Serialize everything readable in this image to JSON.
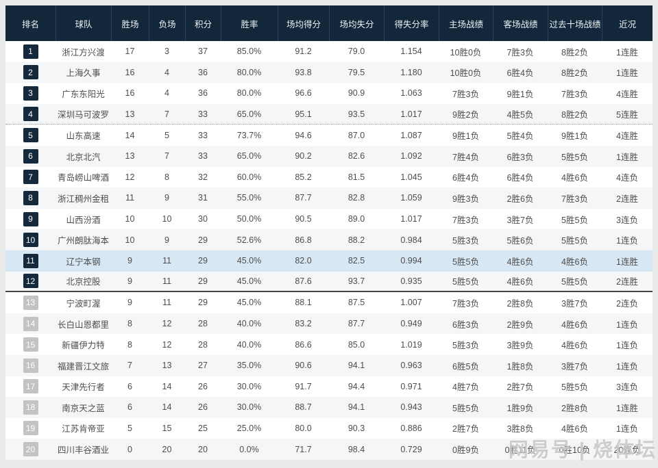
{
  "colors": {
    "page_bg": "#e9ebeb",
    "header_bg": "#12283a",
    "header_text": "#eef3f7",
    "header_divider": "#27445c",
    "badge_dark_bg": "#15293c",
    "badge_light_bg": "#c3c3c3",
    "badge_text": "#ffffff",
    "row_stripe_bg": "#f4f6f7",
    "row_highlight_bg": "#d8e7f4",
    "cell_text": "#4d4d4d",
    "dotted_divider": "#9a9a9a",
    "solid_divider": "#454545",
    "watermark_color": "#c7c7c7"
  },
  "table": {
    "columns": [
      {
        "key": "rank",
        "label": "排名"
      },
      {
        "key": "team",
        "label": "球队"
      },
      {
        "key": "wins",
        "label": "胜场"
      },
      {
        "key": "losses",
        "label": "负场"
      },
      {
        "key": "points",
        "label": "积分"
      },
      {
        "key": "win_rate",
        "label": "胜率"
      },
      {
        "key": "avg_scored",
        "label": "场均得分"
      },
      {
        "key": "avg_allowed",
        "label": "场均失分"
      },
      {
        "key": "ratio",
        "label": "得失分率"
      },
      {
        "key": "home",
        "label": "主场战绩"
      },
      {
        "key": "away",
        "label": "客场战绩"
      },
      {
        "key": "last10",
        "label": "过去十场战绩"
      },
      {
        "key": "form",
        "label": "近况"
      }
    ],
    "highlight_rank": 11,
    "dotted_divider_after_rank": 4,
    "solid_divider_after_rank": 12,
    "dark_badge_max_rank": 12,
    "rows": [
      {
        "rank": "1",
        "team": "浙江方兴渡",
        "wins": "17",
        "losses": "3",
        "points": "37",
        "win_rate": "85.0%",
        "avg_scored": "91.2",
        "avg_allowed": "79.0",
        "ratio": "1.154",
        "home": "10胜0负",
        "away": "7胜3负",
        "last10": "8胜2负",
        "form": "1连胜"
      },
      {
        "rank": "2",
        "team": "上海久事",
        "wins": "16",
        "losses": "4",
        "points": "36",
        "win_rate": "80.0%",
        "avg_scored": "93.8",
        "avg_allowed": "79.5",
        "ratio": "1.180",
        "home": "10胜0负",
        "away": "6胜4负",
        "last10": "8胜2负",
        "form": "1连胜"
      },
      {
        "rank": "3",
        "team": "广东东阳光",
        "wins": "16",
        "losses": "4",
        "points": "36",
        "win_rate": "80.0%",
        "avg_scored": "96.6",
        "avg_allowed": "90.9",
        "ratio": "1.063",
        "home": "7胜3负",
        "away": "9胜1负",
        "last10": "7胜3负",
        "form": "4连胜"
      },
      {
        "rank": "4",
        "team": "深圳马可波罗",
        "wins": "13",
        "losses": "7",
        "points": "33",
        "win_rate": "65.0%",
        "avg_scored": "95.1",
        "avg_allowed": "93.5",
        "ratio": "1.017",
        "home": "9胜2负",
        "away": "4胜5负",
        "last10": "8胜2负",
        "form": "5连胜"
      },
      {
        "rank": "5",
        "team": "山东高速",
        "wins": "14",
        "losses": "5",
        "points": "33",
        "win_rate": "73.7%",
        "avg_scored": "94.6",
        "avg_allowed": "87.0",
        "ratio": "1.087",
        "home": "9胜1负",
        "away": "5胜4负",
        "last10": "9胜1负",
        "form": "4连胜"
      },
      {
        "rank": "6",
        "team": "北京北汽",
        "wins": "13",
        "losses": "7",
        "points": "33",
        "win_rate": "65.0%",
        "avg_scored": "90.2",
        "avg_allowed": "82.6",
        "ratio": "1.092",
        "home": "7胜4负",
        "away": "6胜3负",
        "last10": "5胜5负",
        "form": "1连胜"
      },
      {
        "rank": "7",
        "team": "青岛崂山啤酒",
        "wins": "12",
        "losses": "8",
        "points": "32",
        "win_rate": "60.0%",
        "avg_scored": "85.2",
        "avg_allowed": "81.5",
        "ratio": "1.045",
        "home": "6胜4负",
        "away": "6胜4负",
        "last10": "4胜6负",
        "form": "4连负"
      },
      {
        "rank": "8",
        "team": "浙江稠州金租",
        "wins": "11",
        "losses": "9",
        "points": "31",
        "win_rate": "55.0%",
        "avg_scored": "87.7",
        "avg_allowed": "82.8",
        "ratio": "1.059",
        "home": "9胜3负",
        "away": "2胜6负",
        "last10": "7胜3负",
        "form": "2连胜"
      },
      {
        "rank": "9",
        "team": "山西汾酒",
        "wins": "10",
        "losses": "10",
        "points": "30",
        "win_rate": "50.0%",
        "avg_scored": "90.5",
        "avg_allowed": "89.0",
        "ratio": "1.017",
        "home": "7胜3负",
        "away": "3胜7负",
        "last10": "5胜5负",
        "form": "3连负"
      },
      {
        "rank": "10",
        "team": "广州朗肽海本",
        "wins": "10",
        "losses": "9",
        "points": "29",
        "win_rate": "52.6%",
        "avg_scored": "86.8",
        "avg_allowed": "88.2",
        "ratio": "0.984",
        "home": "5胜3负",
        "away": "5胜6负",
        "last10": "5胜5负",
        "form": "1连负"
      },
      {
        "rank": "11",
        "team": "辽宁本钢",
        "wins": "9",
        "losses": "11",
        "points": "29",
        "win_rate": "45.0%",
        "avg_scored": "82.0",
        "avg_allowed": "82.5",
        "ratio": "0.994",
        "home": "5胜5负",
        "away": "4胜6负",
        "last10": "4胜6负",
        "form": "1连胜"
      },
      {
        "rank": "12",
        "team": "北京控股",
        "wins": "9",
        "losses": "11",
        "points": "29",
        "win_rate": "45.0%",
        "avg_scored": "87.6",
        "avg_allowed": "93.7",
        "ratio": "0.935",
        "home": "5胜5负",
        "away": "4胜6负",
        "last10": "5胜5负",
        "form": "2连胜"
      },
      {
        "rank": "13",
        "team": "宁波町渥",
        "wins": "9",
        "losses": "11",
        "points": "29",
        "win_rate": "45.0%",
        "avg_scored": "88.1",
        "avg_allowed": "87.5",
        "ratio": "1.007",
        "home": "7胜3负",
        "away": "2胜8负",
        "last10": "3胜7负",
        "form": "2连负"
      },
      {
        "rank": "14",
        "team": "长白山恩都里",
        "wins": "8",
        "losses": "12",
        "points": "28",
        "win_rate": "40.0%",
        "avg_scored": "83.2",
        "avg_allowed": "87.7",
        "ratio": "0.949",
        "home": "6胜3负",
        "away": "2胜9负",
        "last10": "4胜6负",
        "form": "1连负"
      },
      {
        "rank": "15",
        "team": "新疆伊力特",
        "wins": "8",
        "losses": "12",
        "points": "28",
        "win_rate": "40.0%",
        "avg_scored": "86.6",
        "avg_allowed": "85.0",
        "ratio": "1.019",
        "home": "5胜3负",
        "away": "3胜9负",
        "last10": "4胜6负",
        "form": "1连负"
      },
      {
        "rank": "16",
        "team": "福建晋江文旅",
        "wins": "7",
        "losses": "13",
        "points": "27",
        "win_rate": "35.0%",
        "avg_scored": "90.6",
        "avg_allowed": "94.1",
        "ratio": "0.963",
        "home": "6胜5负",
        "away": "1胜8负",
        "last10": "3胜7负",
        "form": "1连负"
      },
      {
        "rank": "17",
        "team": "天津先行者",
        "wins": "6",
        "losses": "14",
        "points": "26",
        "win_rate": "30.0%",
        "avg_scored": "91.7",
        "avg_allowed": "94.4",
        "ratio": "0.971",
        "home": "4胜7负",
        "away": "2胜7负",
        "last10": "5胜5负",
        "form": "3连负"
      },
      {
        "rank": "18",
        "team": "南京天之蓝",
        "wins": "6",
        "losses": "14",
        "points": "26",
        "win_rate": "30.0%",
        "avg_scored": "88.7",
        "avg_allowed": "94.1",
        "ratio": "0.943",
        "home": "5胜5负",
        "away": "1胜9负",
        "last10": "2胜8负",
        "form": "1连胜"
      },
      {
        "rank": "19",
        "team": "江苏肯帝亚",
        "wins": "5",
        "losses": "15",
        "points": "25",
        "win_rate": "25.0%",
        "avg_scored": "80.0",
        "avg_allowed": "90.3",
        "ratio": "0.886",
        "home": "2胜7负",
        "away": "3胜8负",
        "last10": "4胜6负",
        "form": "1连负"
      },
      {
        "rank": "20",
        "team": "四川丰谷酒业",
        "wins": "0",
        "losses": "20",
        "points": "20",
        "win_rate": "0.0%",
        "avg_scored": "71.7",
        "avg_allowed": "98.4",
        "ratio": "0.729",
        "home": "0胜9负",
        "away": "0胜11负",
        "last10": "0胜10负",
        "form": "20连负"
      }
    ]
  },
  "watermark": {
    "text": "网易号 | 烧体坛"
  }
}
